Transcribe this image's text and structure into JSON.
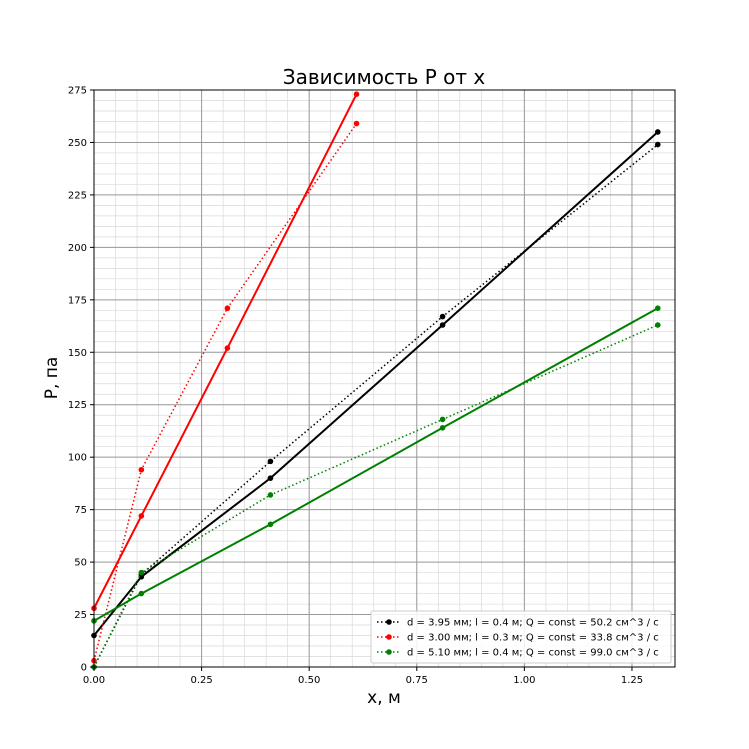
{
  "chart_data": {
    "type": "line",
    "title": "Зависимость P от x",
    "xlabel": "x, м",
    "ylabel": "P, па",
    "xlim": [
      0.0,
      1.35
    ],
    "ylim": [
      0,
      275
    ],
    "xticks": [
      0.0,
      0.25,
      0.5,
      0.75,
      1.0,
      1.25
    ],
    "xtick_labels": [
      "0.00",
      "0.25",
      "0.50",
      "0.75",
      "1.00",
      "1.25"
    ],
    "yticks": [
      0,
      25,
      50,
      75,
      100,
      125,
      150,
      175,
      200,
      225,
      250,
      275
    ],
    "ytick_labels": [
      "0",
      "25",
      "50",
      "75",
      "100",
      "125",
      "150",
      "175",
      "200",
      "225",
      "250",
      "275"
    ],
    "grid": true,
    "minor_grid": true,
    "legend_position": "lower-right",
    "series": [
      {
        "name": "d = 3.95 мм; l = 0.4 м; Q = const = 50.2 см^3 / c",
        "color": "#000000",
        "style": "dotted",
        "x": [
          0.0,
          0.11,
          0.41,
          0.81,
          1.31
        ],
        "y": [
          0,
          44,
          98,
          167,
          249
        ],
        "fit": {
          "x": [
            0.0,
            0.11,
            0.41,
            0.81,
            1.31
          ],
          "y": [
            15,
            43,
            90,
            163,
            255
          ]
        }
      },
      {
        "name": "d = 3.00 мм; l = 0.3 м; Q = const = 33.8 см^3 / c",
        "color": "#ff0000",
        "style": "dotted",
        "x": [
          0.0,
          0.11,
          0.31,
          0.61
        ],
        "y": [
          3,
          94,
          171,
          259
        ],
        "fit": {
          "x": [
            0.0,
            0.11,
            0.31,
            0.61
          ],
          "y": [
            28,
            72,
            152,
            273
          ]
        }
      },
      {
        "name": "d = 5.10 мм; l = 0.4 м; Q = const = 99.0 см^3 / c",
        "color": "#008000",
        "style": "dotted",
        "x": [
          0.0,
          0.11,
          0.41,
          0.81,
          1.31
        ],
        "y": [
          0,
          45,
          82,
          118,
          163
        ],
        "fit": {
          "x": [
            0.0,
            0.11,
            0.41,
            0.81,
            1.31
          ],
          "y": [
            22,
            35,
            68,
            114,
            171
          ]
        }
      }
    ]
  }
}
